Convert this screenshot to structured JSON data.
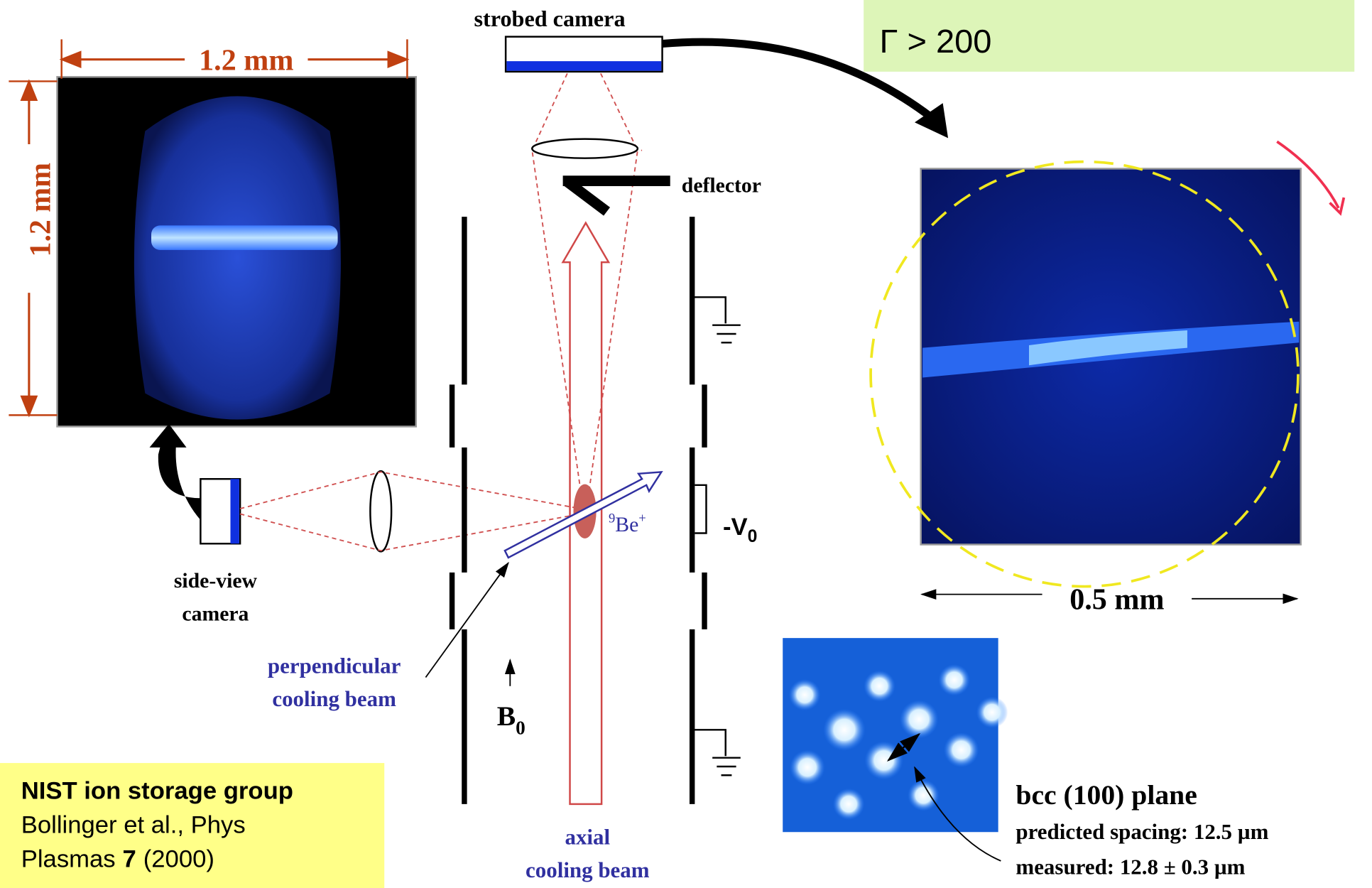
{
  "side_view": {
    "width_label": "1.2 mm",
    "height_label": "1.2 mm",
    "camera_label": [
      "side-view",
      "camera"
    ]
  },
  "top_view": {
    "camera_label": "strobed camera",
    "coupling": "Γ > 200",
    "deflector": "deflector",
    "scale_label": "0.5 mm"
  },
  "trap": {
    "ion_mass": "9",
    "ion_name": "Be",
    "ion_charge": "+",
    "voltage": "-V",
    "voltage_sub": "0",
    "field": "B",
    "field_sub": "0",
    "perpendicular_beam": [
      "perpendicular",
      "cooling beam"
    ],
    "axial_beam": [
      "axial",
      "cooling beam"
    ]
  },
  "lattice": {
    "plane": "bcc (100) plane",
    "predicted": "predicted spacing: 12.5 µm",
    "measured": "measured: 12.8 ± 0.3 µm"
  },
  "citation": {
    "group": "NIST ion storage group",
    "line1": "Bollinger et al., Phys",
    "journal": "Plasmas",
    "volume": "7",
    "year": "(2000)"
  }
}
